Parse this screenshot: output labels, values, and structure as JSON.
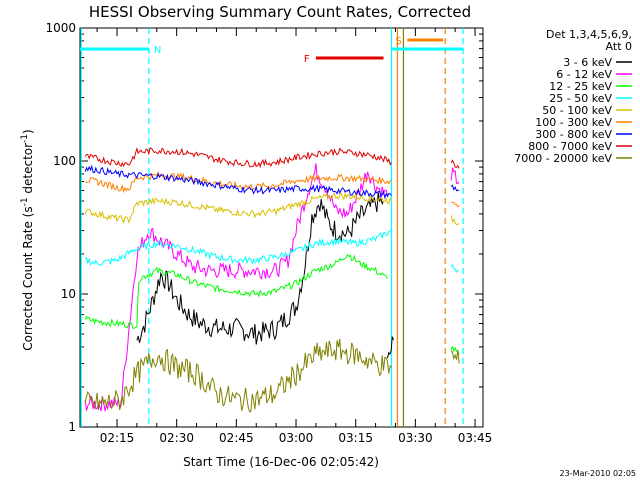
{
  "chart_data": {
    "type": "line",
    "title": "HESSI Observing Summary Count Rates, Corrected",
    "xlabel": "Start Time (16-Dec-06 02:05:42)",
    "ylabel_parts": [
      "Corrected Count Rate (s",
      "-1",
      " detector",
      "-1",
      ")"
    ],
    "yscale": "log",
    "xlim": [
      "02:05:42",
      "03:47:00"
    ],
    "ylim": [
      1,
      1000
    ],
    "x_ticks": [
      "02:15",
      "02:30",
      "02:45",
      "03:00",
      "03:15",
      "03:30",
      "03:45"
    ],
    "y_ticks": [
      "1",
      "10",
      "100",
      "1000"
    ],
    "legend": {
      "header": [
        "Det 1,3,4,5,6,9,",
        "Att 0"
      ],
      "placement": "right"
    },
    "series": [
      {
        "name": "3 - 6 keV",
        "color": "#000000",
        "points": [
          [
            "02:20",
            4.5
          ],
          [
            "02:22",
            6
          ],
          [
            "02:24",
            9
          ],
          [
            "02:26",
            14
          ],
          [
            "02:28",
            12
          ],
          [
            "02:30",
            9
          ],
          [
            "02:33",
            7
          ],
          [
            "02:36",
            6
          ],
          [
            "02:40",
            5.5
          ],
          [
            "02:45",
            5.5
          ],
          [
            "02:50",
            5
          ],
          [
            "02:55",
            5.5
          ],
          [
            "03:00",
            8
          ],
          [
            "03:02",
            15
          ],
          [
            "03:04",
            38
          ],
          [
            "03:06",
            50
          ],
          [
            "03:08",
            35
          ],
          [
            "03:10",
            30
          ],
          [
            "03:13",
            28
          ],
          [
            "03:16",
            38
          ],
          [
            "03:20",
            48
          ],
          [
            "03:22",
            50
          ]
        ],
        "points_after": [
          [
            "03:23",
            3
          ],
          [
            "03:24.5",
            4.5
          ]
        ]
      },
      {
        "name": "6 - 12 keV",
        "color": "#ff00ff",
        "points": [
          [
            "02:07",
            1.5
          ],
          [
            "02:10",
            1.5
          ],
          [
            "02:14",
            1.5
          ],
          [
            "02:16",
            1.5
          ],
          [
            "02:20",
            20
          ],
          [
            "02:23",
            30
          ],
          [
            "02:26",
            25
          ],
          [
            "02:30",
            20
          ],
          [
            "02:34",
            16
          ],
          [
            "02:38",
            15
          ],
          [
            "02:42",
            15
          ],
          [
            "02:46",
            15
          ],
          [
            "02:50",
            15
          ],
          [
            "02:55",
            15
          ],
          [
            "02:58",
            18
          ],
          [
            "03:00",
            30
          ],
          [
            "03:03",
            60
          ],
          [
            "03:05",
            85
          ],
          [
            "03:08",
            60
          ],
          [
            "03:10",
            42
          ],
          [
            "03:13",
            40
          ],
          [
            "03:16",
            60
          ],
          [
            "03:18",
            85
          ],
          [
            "03:20",
            65
          ],
          [
            "03:23",
            55
          ]
        ],
        "points_after": [
          [
            "03:39",
            80
          ],
          [
            "03:41",
            70
          ]
        ]
      },
      {
        "name": "12 - 25 keV",
        "color": "#00ff00",
        "points": [
          [
            "02:07",
            6.5
          ],
          [
            "02:10",
            6.2
          ],
          [
            "02:15",
            6
          ],
          [
            "02:20",
            5.8
          ],
          [
            "02:20.5",
            13
          ],
          [
            "02:25",
            15
          ],
          [
            "02:30",
            14
          ],
          [
            "02:35",
            12
          ],
          [
            "02:40",
            11
          ],
          [
            "02:45",
            10.5
          ],
          [
            "02:50",
            10
          ],
          [
            "02:55",
            10.5
          ],
          [
            "03:00",
            12
          ],
          [
            "03:05",
            15
          ],
          [
            "03:10",
            17
          ],
          [
            "03:13",
            20
          ],
          [
            "03:16",
            17
          ],
          [
            "03:20",
            15
          ],
          [
            "03:23",
            13
          ]
        ],
        "points_after": [
          [
            "03:39",
            4
          ],
          [
            "03:41",
            3.5
          ]
        ]
      },
      {
        "name": "25 - 50 keV",
        "color": "#00ffff",
        "points": [
          [
            "02:07",
            18
          ],
          [
            "02:10",
            17
          ],
          [
            "02:15",
            18
          ],
          [
            "02:20",
            22
          ],
          [
            "02:25",
            24
          ],
          [
            "02:30",
            23
          ],
          [
            "02:35",
            21
          ],
          [
            "02:40",
            19
          ],
          [
            "02:45",
            18
          ],
          [
            "02:50",
            18
          ],
          [
            "02:55",
            19
          ],
          [
            "03:00",
            21
          ],
          [
            "03:05",
            24
          ],
          [
            "03:10",
            25
          ],
          [
            "03:15",
            24
          ],
          [
            "03:20",
            26
          ],
          [
            "03:24",
            30
          ]
        ],
        "points_after": [
          [
            "03:39",
            16
          ],
          [
            "03:41",
            15
          ]
        ]
      },
      {
        "name": "50 - 100 keV",
        "color": "#d8c000",
        "points": [
          [
            "02:07",
            42
          ],
          [
            "02:10",
            40
          ],
          [
            "02:15",
            37
          ],
          [
            "02:18",
            36
          ],
          [
            "02:20",
            48
          ],
          [
            "02:25",
            50
          ],
          [
            "02:30",
            49
          ],
          [
            "02:35",
            46
          ],
          [
            "02:40",
            43
          ],
          [
            "02:45",
            41
          ],
          [
            "02:50",
            40
          ],
          [
            "02:55",
            42
          ],
          [
            "03:00",
            47
          ],
          [
            "03:05",
            52
          ],
          [
            "03:10",
            55
          ],
          [
            "03:15",
            54
          ],
          [
            "03:20",
            52
          ],
          [
            "03:24",
            50
          ]
        ],
        "points_after": [
          [
            "03:39",
            37
          ],
          [
            "03:41",
            34
          ]
        ]
      },
      {
        "name": "100 - 300 keV",
        "color": "#ff8000",
        "points": [
          [
            "02:07",
            72
          ],
          [
            "02:10",
            70
          ],
          [
            "02:15",
            63
          ],
          [
            "02:18",
            62
          ],
          [
            "02:20",
            75
          ],
          [
            "02:25",
            78
          ],
          [
            "02:30",
            77
          ],
          [
            "02:35",
            73
          ],
          [
            "02:40",
            68
          ],
          [
            "02:45",
            65
          ],
          [
            "02:50",
            64
          ],
          [
            "02:55",
            66
          ],
          [
            "03:00",
            71
          ],
          [
            "03:05",
            74
          ],
          [
            "03:10",
            75
          ],
          [
            "03:15",
            74
          ],
          [
            "03:20",
            72
          ],
          [
            "03:24",
            70
          ]
        ],
        "points_after": [
          [
            "03:39",
            50
          ],
          [
            "03:41",
            46
          ]
        ]
      },
      {
        "name": "300 - 800 keV",
        "color": "#0000ff",
        "points": [
          [
            "02:07",
            88
          ],
          [
            "02:10",
            86
          ],
          [
            "02:15",
            80
          ],
          [
            "02:20",
            78
          ],
          [
            "02:25",
            77
          ],
          [
            "02:30",
            74
          ],
          [
            "02:35",
            70
          ],
          [
            "02:40",
            66
          ],
          [
            "02:45",
            62
          ],
          [
            "02:50",
            60
          ],
          [
            "02:55",
            60
          ],
          [
            "03:00",
            62
          ],
          [
            "03:05",
            62
          ],
          [
            "03:10",
            60
          ],
          [
            "03:15",
            58
          ],
          [
            "03:20",
            57
          ],
          [
            "03:24",
            55
          ]
        ],
        "points_after": [
          [
            "03:39",
            65
          ],
          [
            "03:41",
            60
          ]
        ]
      },
      {
        "name": "800 - 7000 keV",
        "color": "#e00000",
        "points": [
          [
            "02:07",
            108
          ],
          [
            "02:10",
            104
          ],
          [
            "02:15",
            97
          ],
          [
            "02:18",
            95
          ],
          [
            "02:20",
            117
          ],
          [
            "02:25",
            120
          ],
          [
            "02:30",
            118
          ],
          [
            "02:35",
            112
          ],
          [
            "02:40",
            103
          ],
          [
            "02:45",
            97
          ],
          [
            "02:50",
            95
          ],
          [
            "02:55",
            98
          ],
          [
            "03:00",
            106
          ],
          [
            "03:05",
            113
          ],
          [
            "03:10",
            118
          ],
          [
            "03:15",
            115
          ],
          [
            "03:20",
            108
          ],
          [
            "03:24",
            98
          ]
        ],
        "points_after": [
          [
            "03:39",
            100
          ],
          [
            "03:41",
            88
          ]
        ]
      },
      {
        "name": "7000 - 20000 keV",
        "color": "#808000",
        "points": [
          [
            "02:07",
            1.5
          ],
          [
            "02:12",
            1.5
          ],
          [
            "02:16",
            1.6
          ],
          [
            "02:20",
            2.5
          ],
          [
            "02:25",
            3.5
          ],
          [
            "02:30",
            2.8
          ],
          [
            "02:35",
            2.5
          ],
          [
            "02:40",
            1.8
          ],
          [
            "02:45",
            1.6
          ],
          [
            "02:50",
            1.6
          ],
          [
            "02:55",
            1.8
          ],
          [
            "03:00",
            2.5
          ],
          [
            "03:05",
            3.5
          ],
          [
            "03:10",
            3.8
          ],
          [
            "03:15",
            3.5
          ],
          [
            "03:20",
            3
          ],
          [
            "03:24",
            2.8
          ]
        ],
        "points_after": [
          [
            "03:39",
            3.5
          ],
          [
            "03:41",
            3
          ]
        ]
      }
    ],
    "markers": [
      {
        "label": "N",
        "color": "#00ffff",
        "x_start": "02:05:42",
        "x_end": "02:23"
      },
      {
        "label": "F",
        "color": "#e00000",
        "x_start": "03:05",
        "x_end": "03:22"
      },
      {
        "label": "S",
        "color": "#ff8000",
        "x_start": "03:28",
        "x_end": "03:37"
      }
    ],
    "bars_right": {
      "color": "#00ffff",
      "x_start": "03:24",
      "x_end": "03:42"
    },
    "vlines": [
      {
        "x": "02:06",
        "color": "#00ffff",
        "style": "solid"
      },
      {
        "x": "02:23",
        "color": "#00ffff",
        "style": "dashed"
      },
      {
        "x": "03:24",
        "color": "#00ffff",
        "style": "solid"
      },
      {
        "x": "03:25.5",
        "color": "#ff8000",
        "style": "solid"
      },
      {
        "x": "03:27",
        "color": "#808000",
        "style": "solid"
      },
      {
        "x": "03:37.5",
        "color": "#ff8000",
        "style": "dashed"
      },
      {
        "x": "03:42",
        "color": "#00ffff",
        "style": "dashed"
      }
    ],
    "footer": "23-Mar-2010 02:05"
  }
}
